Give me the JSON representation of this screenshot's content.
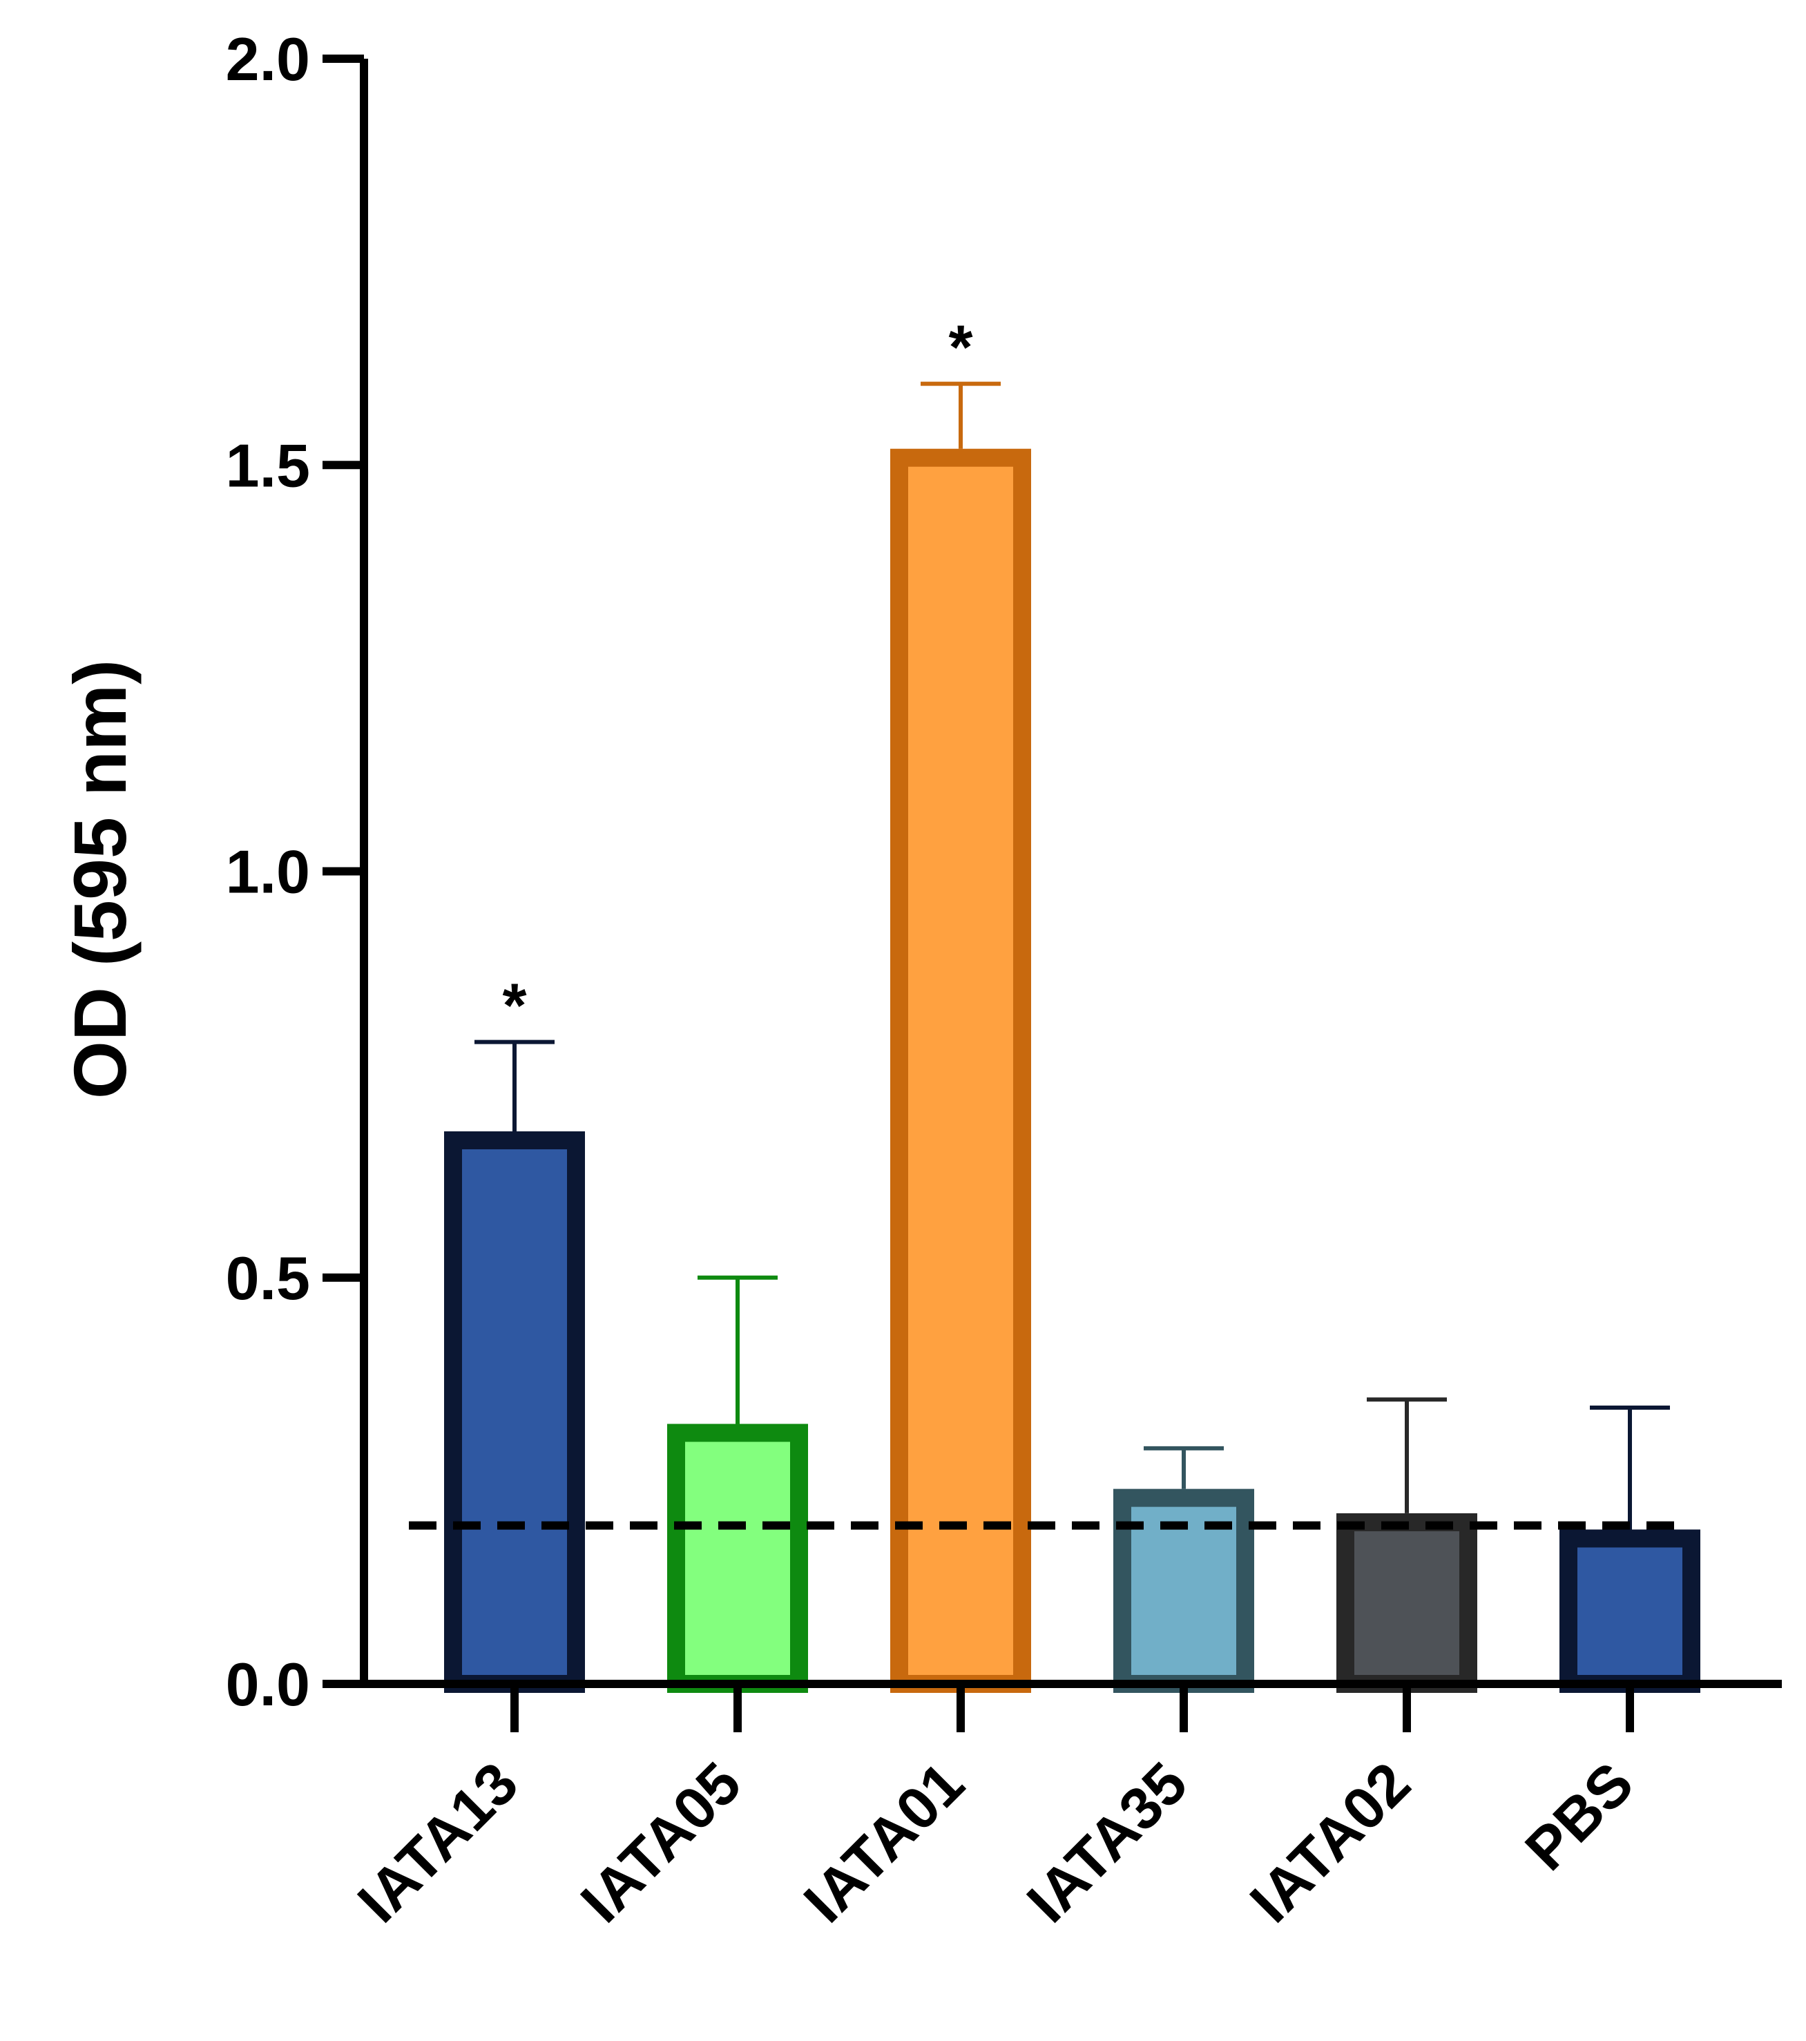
{
  "chart_data": {
    "type": "bar",
    "title": "",
    "xlabel": "",
    "ylabel": "OD (595 nm)",
    "ylim": [
      0,
      2.0
    ],
    "yticks": [
      "0.0",
      "0.5",
      "1.0",
      "1.5",
      "2.0"
    ],
    "categories": [
      "IATA13",
      "IATA05",
      "IATA01",
      "IATA35",
      "IATA02",
      "PBS"
    ],
    "values": [
      0.68,
      0.32,
      1.52,
      0.24,
      0.21,
      0.19
    ],
    "errors": [
      0.11,
      0.18,
      0.08,
      0.05,
      0.14,
      0.15
    ],
    "significance": [
      "*",
      "",
      "*",
      "",
      "",
      ""
    ],
    "reference_line": {
      "value": 0.195,
      "style": "dashed"
    },
    "grid": false,
    "colors": {
      "fill": [
        "#2F58A2",
        "#83FF7E",
        "#FFA140",
        "#71AFC8",
        "#4E5257",
        "#2F58A2"
      ],
      "stroke": [
        "#0B1733",
        "#0E8A10",
        "#C8690E",
        "#33555F",
        "#282828",
        "#0B1733"
      ],
      "axis": "#000000"
    }
  }
}
